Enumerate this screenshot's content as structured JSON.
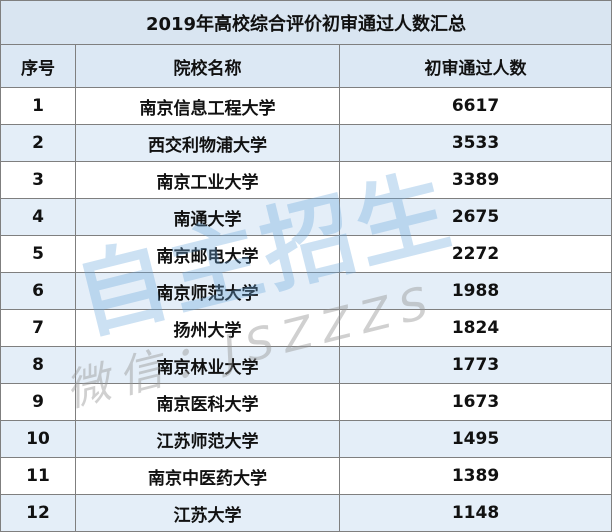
{
  "table": {
    "title": "2019年高校综合评价初审通过人数汇总",
    "header": [
      "序号",
      "院校名称",
      "初审通过人数"
    ],
    "rows": [
      [
        1,
        "南京信息工程大学",
        6617
      ],
      [
        2,
        "西交利物浦大学",
        3533
      ],
      [
        3,
        "南京工业大学",
        3389
      ],
      [
        4,
        "南通大学",
        2675
      ],
      [
        5,
        "南京邮电大学",
        2272
      ],
      [
        6,
        "南京师范大学",
        1988
      ],
      [
        7,
        "扬州大学",
        1824
      ],
      [
        8,
        "南京林业大学",
        1773
      ],
      [
        9,
        "南京医科大学",
        1673
      ],
      [
        10,
        "江苏师范大学",
        1495
      ],
      [
        11,
        "南京中医药大学",
        1389
      ],
      [
        12,
        "江苏大学",
        1148
      ]
    ]
  },
  "watermark": {
    "main": "自主招生",
    "sub": "微信：JSZZZS"
  }
}
